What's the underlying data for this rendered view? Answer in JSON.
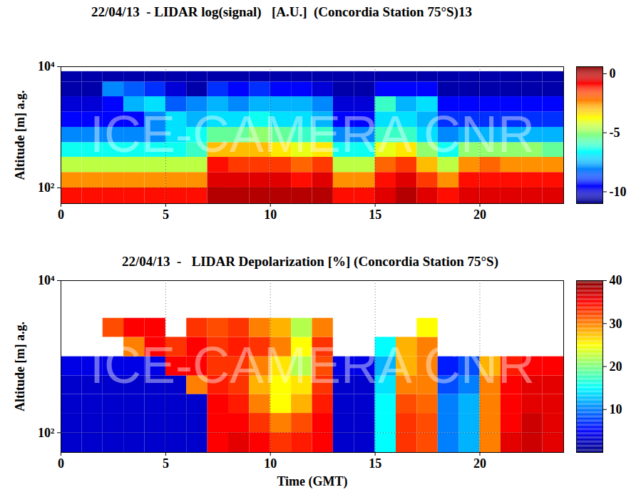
{
  "chart_data": [
    {
      "type": "heatmap",
      "title": "22/04/13  - LIDAR log(signal)   [A.U.]  (Concordia Station 75°S)13",
      "ylabel": "Altitude [m] a.g.",
      "annotations": [
        "ICE-CAMERA CNR"
      ],
      "log": "y",
      "grid": true,
      "xlim": [
        0,
        24
      ],
      "xticks": [
        0,
        5,
        10,
        15,
        20
      ],
      "ylim": [
        55,
        10000
      ],
      "yticks": [
        {
          "value": 100,
          "label": "10²"
        },
        {
          "value": 10000,
          "label": "10⁴"
        }
      ],
      "x_edges": [
        0,
        1,
        2,
        3,
        4,
        5,
        6,
        7,
        8,
        9,
        10,
        11,
        12,
        13,
        14,
        15,
        16,
        17,
        18,
        19,
        20,
        21,
        22,
        23,
        24
      ],
      "y_edges": [
        55,
        100,
        180,
        320,
        560,
        1000,
        1800,
        3200,
        5600,
        8300
      ],
      "cells": [
        [
          -1,
          -1,
          -1,
          -1,
          -1,
          -1,
          -1,
          0,
          0,
          0,
          0,
          0,
          0,
          -1,
          -1,
          -0.5,
          0,
          -0.5,
          -1,
          -0.5,
          -0.5,
          -0.5,
          -0.5,
          -0.5
        ],
        [
          -2.5,
          -2.5,
          -2.5,
          -2.5,
          -2.5,
          -2.5,
          -2.5,
          -0.5,
          -0.5,
          -0.5,
          -0.5,
          -1,
          -0.5,
          -2.5,
          -2.5,
          -1,
          -0.5,
          -1.5,
          -2.5,
          -1,
          -1,
          -1,
          -1,
          -1
        ],
        [
          -4.5,
          -4.5,
          -4.5,
          -4.5,
          -4.5,
          -4.5,
          -4.5,
          -1,
          -1.5,
          -1.5,
          -1.5,
          -2,
          -1.5,
          -4.5,
          -4.5,
          -2,
          -1.5,
          -3,
          -4.5,
          -2.5,
          -2,
          -2.5,
          -2.5,
          -2.5
        ],
        [
          -6.5,
          -6.5,
          -6.5,
          -6.5,
          -6.5,
          -6.5,
          -6,
          -3,
          -3,
          -3,
          -3.5,
          -4,
          -3.5,
          -6.5,
          -6.5,
          -4,
          -3.5,
          -5,
          -6.5,
          -5,
          -5,
          -5,
          -5,
          -5.5
        ],
        [
          -8,
          -8,
          -8,
          -8,
          -8,
          -7,
          -6.5,
          -5.5,
          -5.5,
          -5,
          -5.5,
          -6,
          -6,
          -8,
          -8,
          -6,
          -6,
          -7,
          -8,
          -7.5,
          -7.5,
          -7.5,
          -7.5,
          -7.5
        ],
        [
          -9.5,
          -9.5,
          -9.5,
          -9.5,
          -8,
          -7,
          -7.5,
          -7,
          -7,
          -6.5,
          -7,
          -7,
          -7.5,
          -9.5,
          -9.5,
          -7,
          -7,
          -7.5,
          -9,
          -9,
          -9,
          -9,
          -9,
          -9
        ],
        [
          -10,
          -10,
          -9.5,
          -7.5,
          -7,
          -8.5,
          -8,
          -7.5,
          -8,
          -7.5,
          -7.5,
          -7.5,
          -8,
          -10,
          -10,
          -6,
          -7.5,
          -7,
          -9.5,
          -9.5,
          -9.5,
          -9.5,
          -9.5,
          -9.5
        ],
        [
          -10.5,
          -10.5,
          -8,
          -8.5,
          -9,
          -10,
          -10.5,
          -9,
          -9.5,
          -9,
          -9.5,
          -9.5,
          -10,
          -10.5,
          -10.5,
          -9.5,
          -9.5,
          -9.5,
          -10.5,
          -10.5,
          -10.5,
          -10.5,
          -10.5,
          -10.5
        ],
        [
          -10.5,
          -10.5,
          -10.5,
          -10.5,
          -10.5,
          -10.5,
          -10.5,
          -10.5,
          -10.5,
          -10.5,
          -10.5,
          -10.5,
          -10.5,
          -10.5,
          -10.5,
          -10.5,
          -10.5,
          -10.5,
          -10.5,
          -10.5,
          -10.5,
          -10.5,
          -10.5,
          -10.5
        ]
      ],
      "colorbar_range": [
        -11,
        0.6
      ],
      "colorbar_ticks": [
        0,
        -5,
        -10
      ]
    },
    {
      "type": "heatmap",
      "title": "22/04/13  -   LIDAR Depolarization [%] (Concordia Station 75°S)",
      "xlabel": "Time (GMT)",
      "ylabel": "Altitude [m] a.g.",
      "annotations": [
        "ICE-CAMERA CNR"
      ],
      "log": "y",
      "grid": true,
      "xlim": [
        0,
        24
      ],
      "xticks": [
        0,
        5,
        10,
        15,
        20
      ],
      "ylim": [
        55,
        10000
      ],
      "yticks": [
        {
          "value": 100,
          "label": "10²"
        },
        {
          "value": 10000,
          "label": "10⁴"
        }
      ],
      "x_edges": [
        0,
        1,
        2,
        3,
        4,
        5,
        6,
        7,
        8,
        9,
        10,
        11,
        12,
        13,
        14,
        15,
        16,
        17,
        18,
        19,
        20,
        21,
        22,
        23,
        24
      ],
      "y_edges": [
        55,
        100,
        180,
        320,
        560,
        1000,
        1800,
        3200,
        5600,
        8300
      ],
      "cells": [
        [
          3,
          3,
          3,
          3,
          3,
          3,
          3,
          35,
          36,
          35,
          33,
          34,
          35,
          3,
          3,
          15,
          33,
          32,
          10,
          12,
          30,
          36,
          37,
          36
        ],
        [
          3,
          3,
          3,
          3,
          3,
          3,
          3,
          35,
          35,
          33,
          30,
          32,
          35,
          3,
          3,
          15,
          33,
          32,
          10,
          12,
          30,
          35,
          37,
          36
        ],
        [
          3,
          3,
          3,
          3,
          3,
          3,
          3,
          35,
          34,
          30,
          25,
          28,
          34,
          3,
          3,
          15,
          32,
          31,
          10,
          12,
          30,
          35,
          36,
          36
        ],
        [
          3,
          3,
          3,
          3,
          3,
          3,
          30,
          34,
          33,
          28,
          25,
          26,
          33,
          3,
          3,
          14,
          30,
          30,
          8,
          10,
          30,
          35,
          36,
          36
        ],
        [
          4,
          4,
          4,
          4,
          4,
          35,
          35,
          33,
          33,
          30,
          26,
          22,
          32,
          4,
          4,
          12,
          28,
          30,
          6,
          8,
          28,
          34,
          35,
          35
        ],
        [
          null,
          null,
          null,
          30,
          35,
          33,
          35,
          33,
          34,
          33,
          30,
          25,
          33,
          null,
          null,
          15,
          28,
          30,
          null,
          null,
          null,
          null,
          null,
          null
        ],
        [
          null,
          null,
          32,
          35,
          35,
          null,
          33,
          32,
          33,
          30,
          28,
          22,
          30,
          null,
          null,
          null,
          null,
          25,
          null,
          null,
          null,
          null,
          null,
          null
        ],
        [
          null,
          null,
          null,
          null,
          null,
          null,
          null,
          null,
          null,
          null,
          null,
          null,
          null,
          null,
          null,
          null,
          null,
          null,
          null,
          null,
          null,
          null,
          null,
          null
        ],
        [
          null,
          null,
          null,
          null,
          null,
          null,
          null,
          null,
          null,
          null,
          null,
          null,
          null,
          null,
          null,
          null,
          null,
          null,
          null,
          null,
          null,
          null,
          null,
          null
        ]
      ],
      "colorbar_range": [
        0,
        40
      ],
      "colorbar_ticks": [
        10,
        20,
        30,
        40
      ]
    }
  ]
}
